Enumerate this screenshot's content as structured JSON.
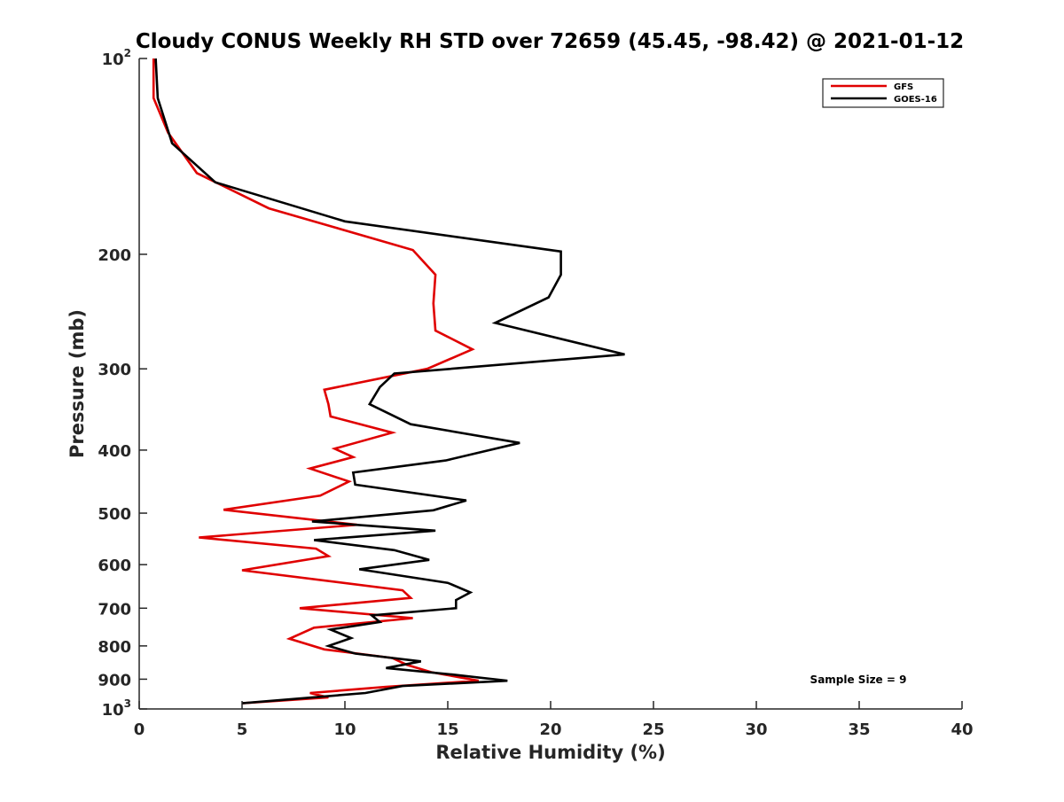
{
  "chart_data": {
    "type": "line",
    "title": "Cloudy CONUS Weekly RH STD over 72659 (45.45, -98.42) @ 2021-01-12",
    "xlabel": "Relative Humidity (%)",
    "ylabel": "Pressure (mb)",
    "xlim": [
      0,
      40
    ],
    "ylim": [
      100,
      1000
    ],
    "y_scale": "log",
    "y_reversed": true,
    "grid": false,
    "legend_position": "top-right",
    "x_ticks": [
      0,
      5,
      10,
      15,
      20,
      25,
      30,
      35,
      40
    ],
    "x_tick_labels": [
      "0",
      "5",
      "10",
      "15",
      "20",
      "25",
      "30",
      "35",
      "40"
    ],
    "y_ticks": [
      100,
      200,
      300,
      400,
      500,
      600,
      700,
      800,
      900,
      1000
    ],
    "y_tick_labels": [
      "10^2",
      "200",
      "300",
      "400",
      "500",
      "600",
      "700",
      "800",
      "900",
      "10^3"
    ],
    "annotation": "Sample Size = 9",
    "series": [
      {
        "name": "GFS",
        "color": "#e00000",
        "points": [
          [
            0.7,
            100
          ],
          [
            0.7,
            115
          ],
          [
            1.4,
            130
          ],
          [
            2.8,
            150
          ],
          [
            6.3,
            170
          ],
          [
            13.3,
            197
          ],
          [
            14.4,
            215
          ],
          [
            14.3,
            238
          ],
          [
            14.4,
            262
          ],
          [
            16.2,
            280
          ],
          [
            14.0,
            300
          ],
          [
            9.0,
            323
          ],
          [
            9.2,
            340
          ],
          [
            9.3,
            355
          ],
          [
            12.3,
            376
          ],
          [
            9.5,
            398
          ],
          [
            10.4,
            410
          ],
          [
            8.3,
            427
          ],
          [
            10.2,
            447
          ],
          [
            8.8,
            470
          ],
          [
            4.1,
            494
          ],
          [
            10.6,
            521
          ],
          [
            2.9,
            545
          ],
          [
            8.6,
            567
          ],
          [
            9.2,
            582
          ],
          [
            5.0,
            612
          ],
          [
            12.8,
            657
          ],
          [
            13.2,
            675
          ],
          [
            7.8,
            700
          ],
          [
            13.3,
            725
          ],
          [
            8.5,
            750
          ],
          [
            7.3,
            780
          ],
          [
            9.0,
            810
          ],
          [
            12.3,
            835
          ],
          [
            13.0,
            855
          ],
          [
            14.2,
            878
          ],
          [
            16.5,
            905
          ],
          [
            12.0,
            925
          ],
          [
            8.3,
            945
          ],
          [
            9.2,
            960
          ],
          [
            5.0,
            980
          ]
        ]
      },
      {
        "name": "GOES-16",
        "color": "#000000",
        "points": [
          [
            0.8,
            100
          ],
          [
            0.9,
            115
          ],
          [
            1.6,
            135
          ],
          [
            3.7,
            155
          ],
          [
            10.0,
            178
          ],
          [
            20.5,
            198
          ],
          [
            20.5,
            215
          ],
          [
            19.9,
            233
          ],
          [
            17.3,
            255
          ],
          [
            23.6,
            285
          ],
          [
            12.4,
            305
          ],
          [
            11.7,
            320
          ],
          [
            11.2,
            340
          ],
          [
            13.2,
            365
          ],
          [
            18.5,
            390
          ],
          [
            14.9,
            415
          ],
          [
            10.4,
            433
          ],
          [
            10.5,
            452
          ],
          [
            15.9,
            478
          ],
          [
            14.3,
            495
          ],
          [
            8.4,
            515
          ],
          [
            14.4,
            532
          ],
          [
            8.5,
            550
          ],
          [
            12.4,
            570
          ],
          [
            14.1,
            590
          ],
          [
            10.7,
            610
          ],
          [
            15.0,
            640
          ],
          [
            16.1,
            662
          ],
          [
            15.4,
            680
          ],
          [
            15.4,
            700
          ],
          [
            11.3,
            718
          ],
          [
            11.7,
            735
          ],
          [
            9.3,
            755
          ],
          [
            10.3,
            778
          ],
          [
            9.2,
            800
          ],
          [
            10.5,
            822
          ],
          [
            13.7,
            845
          ],
          [
            12.0,
            865
          ],
          [
            15.2,
            885
          ],
          [
            17.9,
            905
          ],
          [
            12.8,
            922
          ],
          [
            11.0,
            945
          ],
          [
            5.0,
            980
          ]
        ]
      }
    ]
  }
}
